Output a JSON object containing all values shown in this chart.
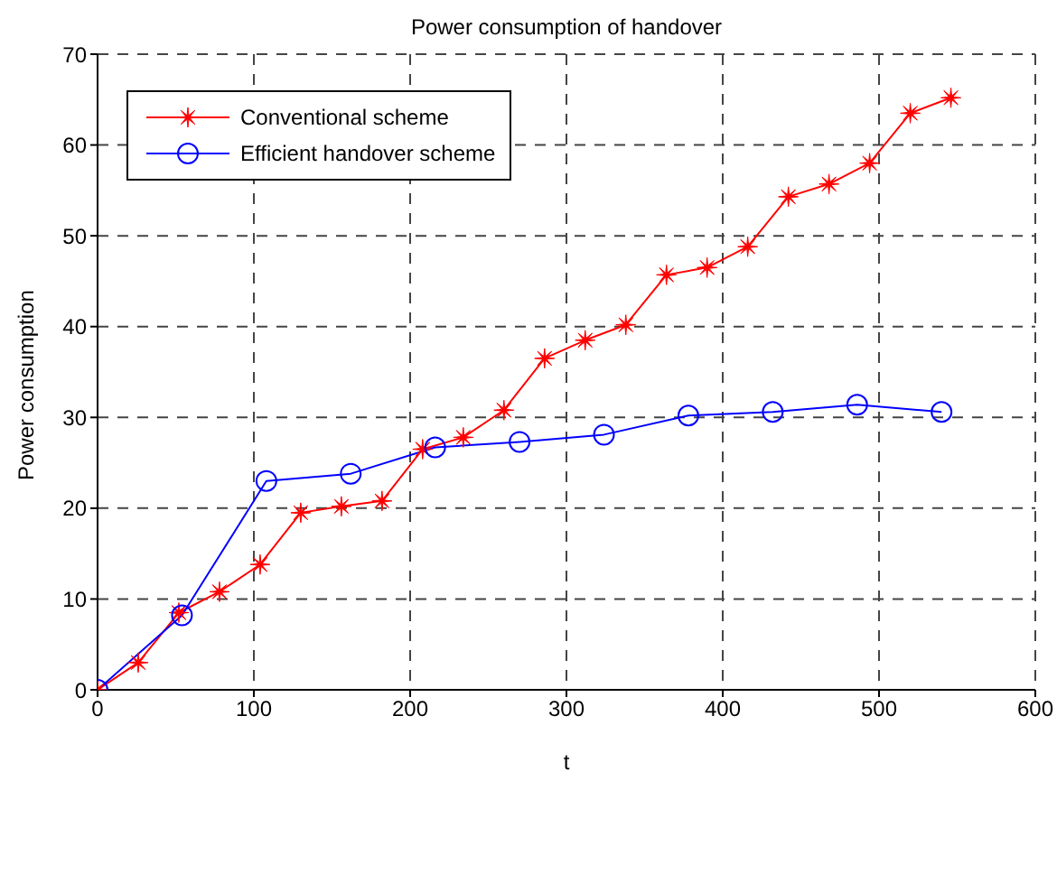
{
  "chart_data": {
    "type": "line",
    "title": "Power consumption of handover",
    "xlabel": "t",
    "ylabel": "Power consumption",
    "xlim": [
      0,
      600
    ],
    "xticks": [
      0,
      100,
      200,
      300,
      400,
      500,
      600
    ],
    "ylim": [
      0,
      70
    ],
    "yticks": [
      0,
      10,
      20,
      30,
      40,
      50,
      60,
      70
    ],
    "grid": true,
    "legend": "top left",
    "line_style": "solid",
    "series": [
      {
        "name": "Conventional scheme",
        "color": "#ff0000",
        "marker": "star",
        "x": [
          0,
          26,
          52,
          78,
          104,
          130,
          156,
          182,
          208,
          234,
          260,
          286,
          312,
          338,
          364,
          390,
          416,
          442,
          468,
          494,
          520,
          546
        ],
        "values": [
          0,
          3,
          8.5,
          10.8,
          13.8,
          19.5,
          20.2,
          20.8,
          26.5,
          27.8,
          30.8,
          36.5,
          38.5,
          40.2,
          45.7,
          46.5,
          48.8,
          54.3,
          55.7,
          58,
          63.5,
          65.2
        ]
      },
      {
        "name": "Efficient handover scheme",
        "color": "#0000ff",
        "marker": "circle",
        "x": [
          0,
          54,
          108,
          162,
          216,
          270,
          324,
          378,
          432,
          486,
          540
        ],
        "values": [
          0,
          8.2,
          23,
          23.8,
          26.7,
          27.3,
          28.1,
          30.2,
          30.6,
          31.4,
          30.6
        ]
      }
    ]
  }
}
